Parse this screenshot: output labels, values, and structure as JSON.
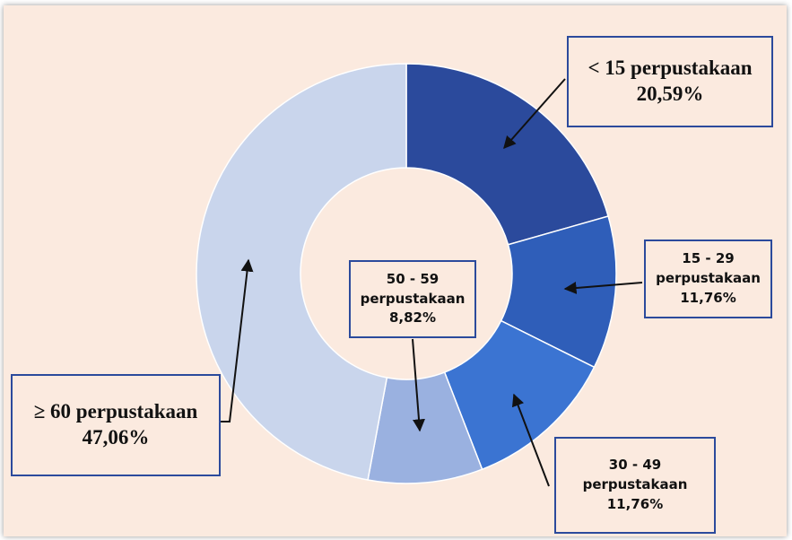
{
  "chart_data": {
    "type": "donut",
    "categories": [
      "< 15 perpustakaan",
      "15 - 29 perpustakaan",
      "30 - 49 perpustakaan",
      "50 - 59 perpustakaan",
      "≥ 60 perpustakaan"
    ],
    "values": [
      20.59,
      11.76,
      11.76,
      8.82,
      47.06
    ],
    "value_labels": [
      "20,59%",
      "11,76%",
      "11,76%",
      "8,82%",
      "47,06%"
    ],
    "colors": [
      "#2b4a9c",
      "#2f5eb9",
      "#3b74d2",
      "#9ab1e0",
      "#c9d5ec"
    ]
  }
}
